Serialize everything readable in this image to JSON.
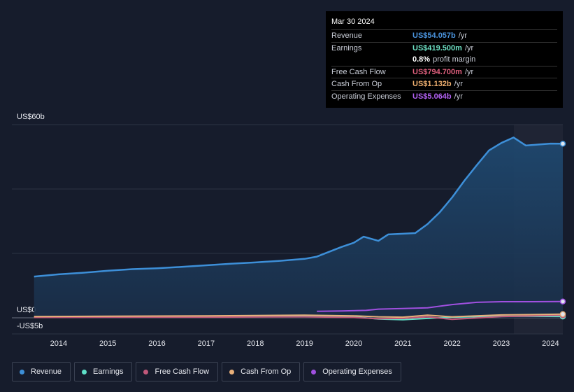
{
  "chart_data": {
    "type": "line",
    "xlim": [
      2013.05,
      2024.25
    ],
    "xticks": [
      2014,
      2015,
      2016,
      2017,
      2018,
      2019,
      2020,
      2021,
      2022,
      2023,
      2024
    ],
    "ylim": [
      -5,
      60
    ],
    "yticks": [
      {
        "value": 60,
        "label": "US$60b"
      },
      {
        "value": 0,
        "label": "US$0"
      },
      {
        "value": -5,
        "label": "-US$5b"
      }
    ],
    "ygrid": [
      20,
      40
    ],
    "grid": true,
    "series": [
      {
        "name": "Revenue",
        "color": "#3d8fd8",
        "area": true,
        "x": [
          2013.5,
          2014,
          2014.5,
          2015,
          2015.5,
          2016,
          2016.5,
          2017,
          2017.5,
          2018,
          2018.5,
          2019,
          2019.25,
          2019.5,
          2019.75,
          2020,
          2020.2,
          2020.5,
          2020.7,
          2021,
          2021.25,
          2021.5,
          2021.75,
          2022,
          2022.25,
          2022.5,
          2022.75,
          2023,
          2023.25,
          2023.5,
          2023.75,
          2024,
          2024.25
        ],
        "values": [
          12.8,
          13.5,
          14.0,
          14.6,
          15.1,
          15.4,
          15.8,
          16.3,
          16.8,
          17.2,
          17.7,
          18.3,
          19.0,
          20.5,
          22.0,
          23.3,
          25.2,
          23.9,
          25.9,
          26.1,
          26.3,
          29.1,
          32.8,
          37.4,
          42.6,
          47.4,
          52.0,
          54.3,
          56.0,
          53.5,
          53.8,
          54.1,
          54.057
        ]
      },
      {
        "name": "Earnings",
        "color": "#5ee0c8",
        "x": [
          2013.5,
          2015,
          2017,
          2019,
          2020,
          2020.5,
          2021,
          2021.5,
          2022,
          2023,
          2024.25
        ],
        "values": [
          0.3,
          0.3,
          0.4,
          0.5,
          0.3,
          -0.4,
          -0.6,
          -0.2,
          0.2,
          0.5,
          0.4195
        ]
      },
      {
        "name": "Free Cash Flow",
        "color": "#c0587a",
        "x": [
          2013.5,
          2015,
          2017,
          2019,
          2020,
          2020.5,
          2021,
          2021.5,
          2022,
          2023,
          2024.25
        ],
        "values": [
          0.1,
          0.2,
          0.2,
          0.3,
          0.1,
          -0.3,
          -0.2,
          0.3,
          -0.5,
          0.4,
          0.7947
        ]
      },
      {
        "name": "Cash From Op",
        "color": "#e8b07a",
        "x": [
          2013.5,
          2015,
          2017,
          2019,
          2020,
          2020.5,
          2021,
          2021.5,
          2022,
          2023,
          2024.25
        ],
        "values": [
          0.4,
          0.5,
          0.6,
          0.8,
          0.6,
          0.3,
          0.2,
          0.8,
          0.3,
          0.9,
          1.132
        ]
      },
      {
        "name": "Operating Expenses",
        "color": "#a050e0",
        "x": [
          2019.25,
          2019.75,
          2020.25,
          2020.5,
          2021,
          2021.5,
          2022,
          2022.5,
          2023,
          2023.5,
          2024.25
        ],
        "values": [
          2.0,
          2.1,
          2.3,
          2.7,
          2.9,
          3.1,
          4.1,
          4.8,
          5.0,
          5.0,
          5.064
        ]
      }
    ],
    "tooltip": {
      "date": "Mar 30 2024",
      "rows": [
        {
          "label": "Revenue",
          "value": "US$54.057b",
          "unit": "/yr",
          "color": "#4a93dc"
        },
        {
          "label": "Earnings",
          "value": "US$419.500m",
          "unit": "/yr",
          "color": "#6fe3c6"
        },
        {
          "label": "",
          "value": "0.8%",
          "unit": "profit margin",
          "color": "#ffffff"
        },
        {
          "label": "Free Cash Flow",
          "value": "US$794.700m",
          "unit": "/yr",
          "color": "#e0607e"
        },
        {
          "label": "Cash From Op",
          "value": "US$1.132b",
          "unit": "/yr",
          "color": "#f0b070"
        },
        {
          "label": "Operating Expenses",
          "value": "US$5.064b",
          "unit": "/yr",
          "color": "#b060f0"
        }
      ]
    }
  }
}
